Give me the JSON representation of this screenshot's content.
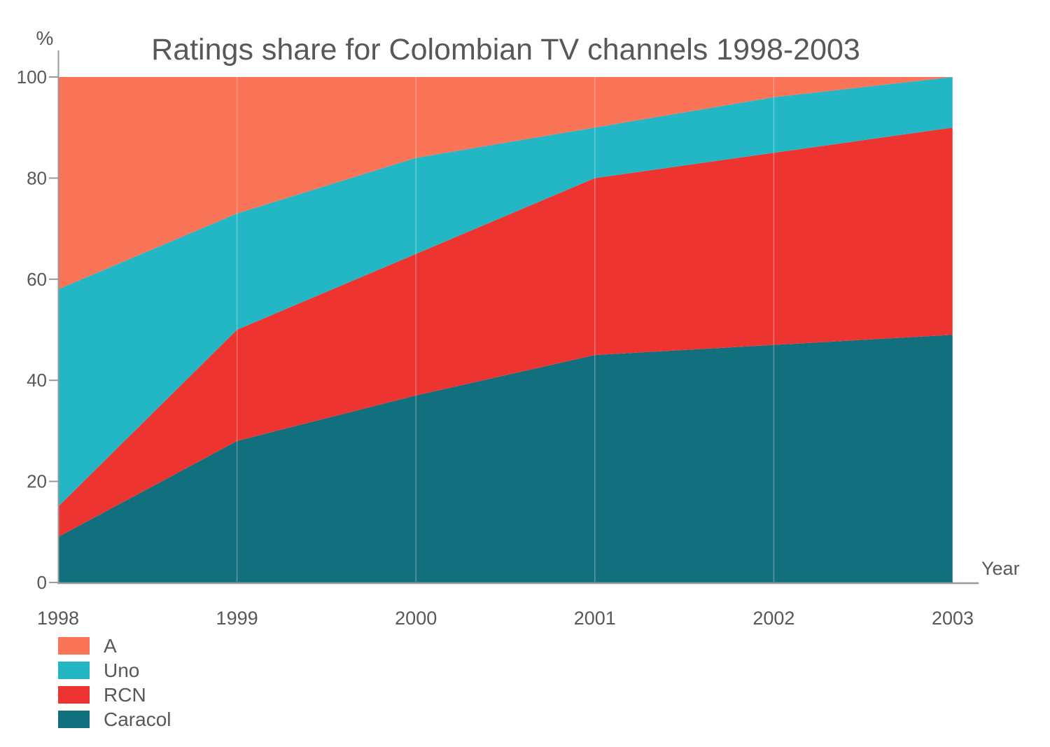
{
  "chart_data": {
    "type": "area",
    "stacked": true,
    "title": "Ratings share for Colombian TV channels 1998-2003",
    "xlabel": "Year",
    "ylabel": "%",
    "x": [
      1998,
      1999,
      2000,
      2001,
      2002,
      2003
    ],
    "x_ticklabels": [
      "1998",
      "1999",
      "2000",
      "2001",
      "2002",
      "2003"
    ],
    "y_ticks": [
      0,
      20,
      40,
      60,
      80,
      100
    ],
    "ylim": [
      0,
      100
    ],
    "grid": "vertical-year-lines",
    "legend_position": "bottom-left",
    "series": [
      {
        "name": "Caracol",
        "color": "#116F7E",
        "values": [
          9,
          28,
          37,
          45,
          47,
          49
        ]
      },
      {
        "name": "RCN",
        "color": "#EE3430",
        "values": [
          6,
          22,
          28,
          35,
          38,
          41
        ]
      },
      {
        "name": "Uno",
        "color": "#23B7C6",
        "values": [
          43,
          23,
          19,
          10,
          11,
          10
        ]
      },
      {
        "name": "A",
        "color": "#FA7557",
        "values": [
          42,
          27,
          16,
          10,
          4,
          0
        ]
      }
    ],
    "legend": [
      "A",
      "Uno",
      "RCN",
      "Caracol"
    ]
  },
  "colors": {
    "axis": "#97999B",
    "text": "#57585A",
    "gridline": "rgba(255,255,255,0.3)",
    "background": "#FFFFFF"
  }
}
